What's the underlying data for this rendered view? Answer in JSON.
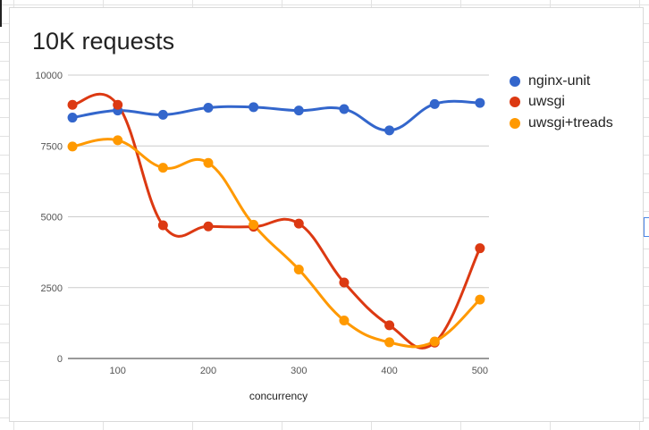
{
  "chart_data": {
    "type": "line",
    "title": "10K requests",
    "xlabel": "concurrency",
    "ylabel": "",
    "x": [
      50,
      100,
      150,
      200,
      250,
      300,
      350,
      400,
      450,
      500
    ],
    "xlim": [
      45,
      510
    ],
    "ylim": [
      0,
      10000
    ],
    "x_ticks": [
      "100",
      "200",
      "300",
      "400",
      "500"
    ],
    "y_ticks": [
      "0",
      "2500",
      "5000",
      "7500",
      "10000"
    ],
    "grid": "horizontal",
    "legend_position": "right",
    "smooth": true,
    "series": [
      {
        "name": "nginx-unit",
        "color": "#3366cc",
        "values": [
          8500,
          8750,
          8600,
          8850,
          8870,
          8750,
          8800,
          8050,
          8980,
          9020
        ]
      },
      {
        "name": "uwsgi",
        "color": "#dc3912",
        "values": [
          8950,
          8950,
          4700,
          4660,
          4650,
          4760,
          2680,
          1170,
          560,
          3890
        ]
      },
      {
        "name": "uwsgi+treads",
        "color": "#ff9900",
        "values": [
          7480,
          7700,
          6730,
          6900,
          4720,
          3140,
          1340,
          570,
          600,
          2080
        ]
      }
    ]
  }
}
